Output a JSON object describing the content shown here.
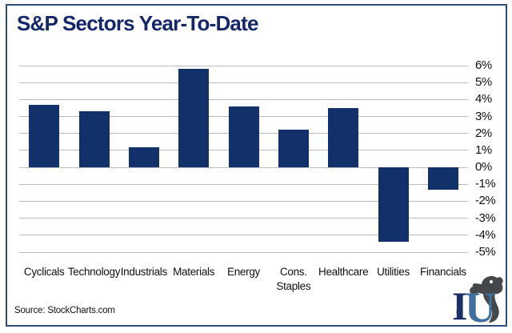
{
  "title": "S&P Sectors Year-To-Date",
  "source_label": "Source: StockCharts.com",
  "logo": {
    "letter_i": "I",
    "letter_u": "U"
  },
  "colors": {
    "title": "#14276b",
    "bar": "#12316b",
    "border": "#2e4d7e",
    "gridline": "#bcbcc0",
    "text": "#111111",
    "logo_i": "#1c2f66",
    "logo_u": "#3f6f9e",
    "logo_animal": "#45484b"
  },
  "chart_data": {
    "type": "bar",
    "title": "S&P Sectors Year-To-Date",
    "categories": [
      "Cyclicals",
      "Technology",
      "Industrials",
      "Materials",
      "Energy",
      "Cons. Staples",
      "Healthcare",
      "Utilities",
      "Financials"
    ],
    "category_display": [
      "Cyclicals",
      "Technology",
      "Industrials",
      "Materials",
      "Energy",
      "Cons.\nStaples",
      "Healthcare",
      "Utilities",
      "Financials"
    ],
    "values": [
      3.7,
      3.3,
      1.2,
      5.8,
      3.6,
      2.2,
      3.5,
      -4.4,
      -1.3
    ],
    "xlabel": "",
    "ylabel": "",
    "ylim": [
      -5,
      6
    ],
    "yticks": [
      6,
      5,
      4,
      3,
      2,
      1,
      0,
      -1,
      -2,
      -3,
      -4,
      -5
    ],
    "ytick_suffix": "%",
    "ytick_side": "right",
    "grid": true,
    "legend": false,
    "bar_color": "#12316b"
  }
}
